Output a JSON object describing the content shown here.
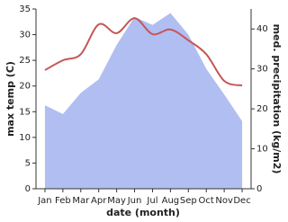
{
  "chart_data": {
    "type": "line",
    "x_label": "date (month)",
    "y_label": "max temp (C)",
    "y2_label": "med. precipitation (kg/m2)",
    "categories": [
      "Jan",
      "Feb",
      "Mar",
      "Apr",
      "May",
      "Jun",
      "Jul",
      "Aug",
      "Sep",
      "Oct",
      "Nov",
      "Dec"
    ],
    "series": [
      {
        "name": "med. precipitation",
        "color": "#b0bef2",
        "axis": "y2",
        "values": [
          20.9,
          18.7,
          24,
          27.4,
          36,
          43,
          41,
          44,
          38.6,
          30,
          23.6,
          16.9
        ]
      },
      {
        "name": "max temp",
        "color": "#c65656",
        "values": [
          23.1,
          25,
          26.2,
          32,
          30.3,
          33.2,
          30.1,
          31,
          28.9,
          26.2,
          21,
          20.1
        ]
      }
    ],
    "ylim": [
      0,
      35
    ],
    "yticks": [
      0,
      5,
      10,
      15,
      20,
      25,
      30,
      35
    ],
    "y2lim": [
      0,
      45
    ],
    "y2ticks": [
      0,
      10,
      20,
      30,
      40
    ]
  }
}
